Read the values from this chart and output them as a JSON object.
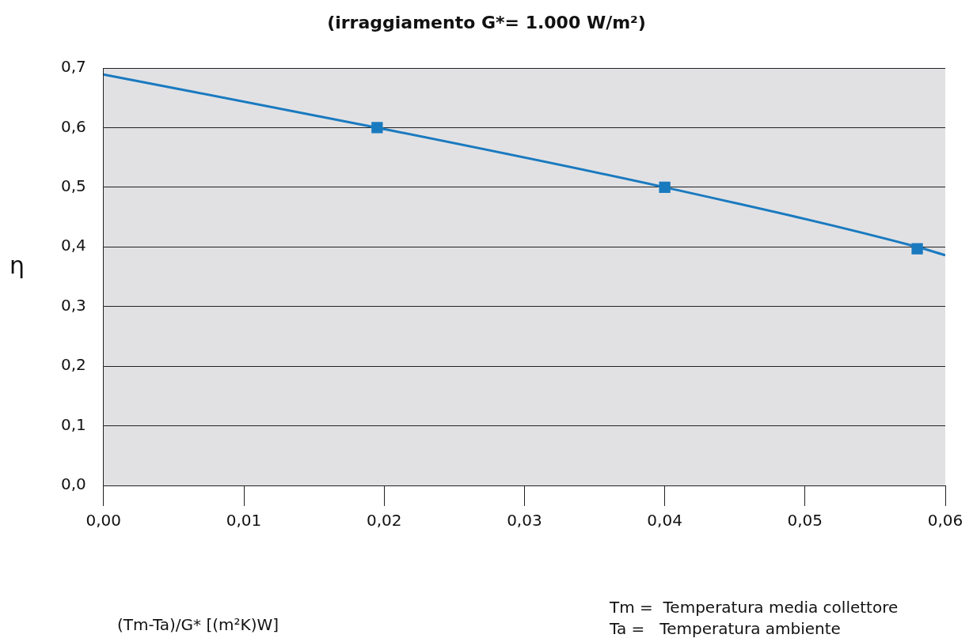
{
  "chart_data": {
    "type": "line",
    "title": "(irraggiamento G*= 1.000 W/m²)",
    "ylabel": "η",
    "annotations": [
      "(Tm-Ta)/G* [(m²K)W]",
      "Tm =  Temperatura media collettore",
      "Ta =   Temperatura ambiente"
    ],
    "series": [
      {
        "x": [
          0,
          0.0195,
          0.04,
          0.058,
          0.06
        ],
        "values": [
          0.689,
          0.6,
          0.5,
          0.4,
          0.386
        ],
        "color": "#1a7abf",
        "marker": "none"
      },
      {
        "type": "scatter",
        "x": [
          0.0195,
          0.04,
          0.058
        ],
        "values": [
          0.6,
          0.5,
          0.397
        ],
        "color": "#1a7abf",
        "marker": "square"
      }
    ],
    "xlim": [
      0,
      0.06
    ],
    "ylim": [
      0,
      0.7
    ],
    "xticks": [
      {
        "value": 0,
        "label": "0,00"
      },
      {
        "value": 0.01,
        "label": "0,01"
      },
      {
        "value": 0.02,
        "label": "0,02"
      },
      {
        "value": 0.03,
        "label": "0,03"
      },
      {
        "value": 0.04,
        "label": "0,04"
      },
      {
        "value": 0.05,
        "label": "0,05"
      },
      {
        "value": 0.06,
        "label": "0,06"
      }
    ],
    "yticks": [
      {
        "value": 0,
        "label": "0,0"
      },
      {
        "value": 0.1,
        "label": "0,1"
      },
      {
        "value": 0.2,
        "label": "0,2"
      },
      {
        "value": 0.3,
        "label": "0,3"
      },
      {
        "value": 0.4,
        "label": "0,4"
      },
      {
        "value": 0.5,
        "label": "0,5"
      },
      {
        "value": 0.6,
        "label": "0,6"
      },
      {
        "value": 0.7,
        "label": "0,7"
      }
    ],
    "grid": "y",
    "legend": false
  }
}
